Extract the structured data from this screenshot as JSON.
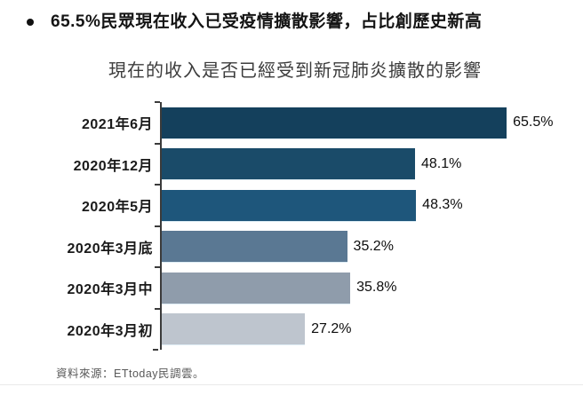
{
  "page": {
    "bullet_title": "65.5%民眾現在收入已受疫情擴散影響，占比創歷史新高",
    "source_note": "資料來源：ETtoday民調雲。"
  },
  "chart_data": {
    "type": "bar",
    "orientation": "horizontal",
    "title": "現在的收入是否已經受到新冠肺炎擴散的影響",
    "categories": [
      "2021年6月",
      "2020年12月",
      "2020年5月",
      "2020年3月底",
      "2020年3月中",
      "2020年3月初"
    ],
    "values": [
      65.5,
      48.1,
      48.3,
      35.2,
      35.8,
      27.2
    ],
    "value_labels": [
      "65.5%",
      "48.1%",
      "48.3%",
      "35.2%",
      "35.8%",
      "27.2%"
    ],
    "bar_colors": [
      "#14405c",
      "#1a4b69",
      "#1e567b",
      "#5a7893",
      "#8f9cab",
      "#bec5ce"
    ],
    "xlim": [
      0,
      80
    ],
    "xlabel": "",
    "ylabel": "",
    "grid": false,
    "legend": false,
    "axis_color": "#3b3b3b",
    "data_labels": "outside-end"
  }
}
